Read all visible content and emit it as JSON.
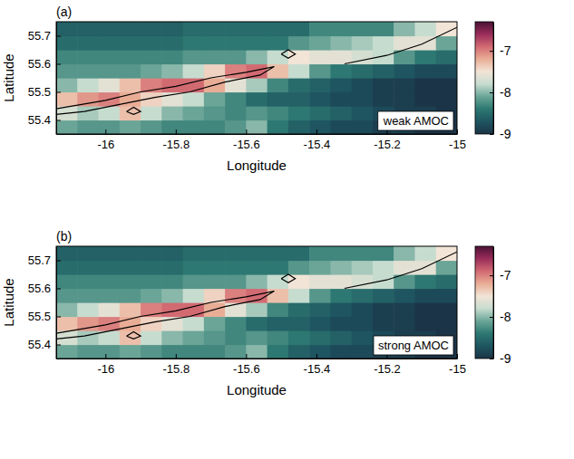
{
  "chart_data": [
    {
      "type": "heatmap",
      "panel_label": "(a)",
      "annotation": "weak AMOC",
      "x_label": "Longitude",
      "y_label": "Latitude",
      "xlim": [
        -16.14,
        -15.0
      ],
      "xticks": [
        -16,
        -15.8,
        -15.6,
        -15.4,
        -15.2,
        -15
      ],
      "ylim": [
        55.35,
        55.75
      ],
      "yticks": [
        55.4,
        55.5,
        55.6,
        55.7
      ],
      "lon_edges": [
        -16.14,
        -16.08,
        -16.02,
        -15.96,
        -15.9,
        -15.84,
        -15.78,
        -15.72,
        -15.66,
        -15.6,
        -15.54,
        -15.48,
        -15.42,
        -15.36,
        -15.3,
        -15.24,
        -15.18,
        -15.12,
        -15.06,
        -15.0
      ],
      "lat_edges": [
        55.35,
        55.4,
        55.45,
        55.5,
        55.55,
        55.6,
        55.65,
        55.7,
        55.75
      ],
      "values": [
        [
          -8.1,
          -8.2,
          -8.2,
          -8.1,
          -8.2,
          -8.3,
          -8.3,
          -8.3,
          -8.2,
          -8.0,
          -8.4,
          -8.6,
          -8.7,
          -8.8,
          -8.8,
          -8.9,
          -8.9,
          -9.0,
          -9.0
        ],
        [
          -7.7,
          -7.9,
          -7.8,
          -7.3,
          -7.8,
          -8.0,
          -8.1,
          -8.2,
          -8.3,
          -8.2,
          -8.3,
          -8.4,
          -8.5,
          -8.6,
          -8.7,
          -8.8,
          -8.9,
          -8.9,
          -9.0
        ],
        [
          -7.3,
          -7.1,
          -7.0,
          -7.2,
          -7.4,
          -7.6,
          -7.8,
          -8.1,
          -8.3,
          -8.5,
          -8.6,
          -8.6,
          -8.7,
          -8.8,
          -8.8,
          -8.9,
          -8.9,
          -9.0,
          -9.0
        ],
        [
          -8.0,
          -7.8,
          -7.6,
          -7.3,
          -7.0,
          -6.9,
          -6.9,
          -7.2,
          -7.6,
          -7.9,
          -8.3,
          -8.5,
          -8.6,
          -8.7,
          -8.8,
          -8.9,
          -8.9,
          -9.0,
          -9.0
        ],
        [
          -8.2,
          -8.2,
          -8.2,
          -8.2,
          -8.1,
          -8.0,
          -7.8,
          -7.4,
          -7.0,
          -6.9,
          -7.3,
          -7.8,
          -8.2,
          -8.4,
          -8.5,
          -8.6,
          -8.7,
          -8.8,
          -8.8
        ],
        [
          -8.3,
          -8.3,
          -8.3,
          -8.3,
          -8.3,
          -8.3,
          -8.2,
          -8.2,
          -8.2,
          -8.0,
          -7.8,
          -7.5,
          -7.6,
          -7.6,
          -7.7,
          -7.8,
          -8.2,
          -8.4,
          -8.5
        ],
        [
          -8.5,
          -8.5,
          -8.5,
          -8.5,
          -8.5,
          -8.5,
          -8.4,
          -8.4,
          -8.4,
          -8.4,
          -8.4,
          -8.2,
          -8.1,
          -8.0,
          -7.9,
          -7.8,
          -7.6,
          -7.6,
          -8.1
        ],
        [
          -8.6,
          -8.6,
          -8.6,
          -8.6,
          -8.6,
          -8.6,
          -8.5,
          -8.5,
          -8.5,
          -8.5,
          -8.5,
          -8.5,
          -8.3,
          -8.3,
          -8.3,
          -8.3,
          -8.0,
          -7.8,
          -7.5
        ]
      ],
      "contours": [
        [
          [
            -16.14,
            55.44
          ],
          [
            -16.0,
            55.47
          ],
          [
            -15.9,
            55.5
          ],
          [
            -15.8,
            55.52
          ],
          [
            -15.7,
            55.55
          ],
          [
            -15.6,
            55.57
          ],
          [
            -15.52,
            55.59
          ],
          [
            -15.56,
            55.56
          ],
          [
            -15.66,
            55.535
          ],
          [
            -15.76,
            55.5
          ],
          [
            -15.86,
            55.48
          ],
          [
            -15.96,
            55.455
          ],
          [
            -16.06,
            55.43
          ],
          [
            -16.14,
            55.42
          ]
        ],
        [
          [
            -15.94,
            55.43
          ],
          [
            -15.92,
            55.445
          ],
          [
            -15.9,
            55.43
          ],
          [
            -15.92,
            55.42
          ],
          [
            -15.94,
            55.43
          ]
        ],
        [
          [
            -15.5,
            55.635
          ],
          [
            -15.48,
            55.65
          ],
          [
            -15.46,
            55.635
          ],
          [
            -15.48,
            55.62
          ],
          [
            -15.5,
            55.635
          ]
        ],
        [
          [
            -15.32,
            55.6
          ],
          [
            -15.2,
            55.63
          ],
          [
            -15.1,
            55.67
          ],
          [
            -15.0,
            55.73
          ]
        ]
      ],
      "colorbar": {
        "range": [
          -9,
          -6.3
        ],
        "ticks": [
          -9,
          -8,
          -7
        ],
        "colors": [
          "#1b3447",
          "#1e5560",
          "#2d7872",
          "#6aa597",
          "#c6dccf",
          "#f2e4d6",
          "#e9ad96",
          "#d26a72",
          "#9a2c5a",
          "#4a1236"
        ]
      }
    },
    {
      "type": "heatmap",
      "panel_label": "(b)",
      "annotation": "strong AMOC",
      "x_label": "Longitude",
      "y_label": "Latitude",
      "xlim": [
        -16.14,
        -15.0
      ],
      "xticks": [
        -16,
        -15.8,
        -15.6,
        -15.4,
        -15.2,
        -15
      ],
      "ylim": [
        55.35,
        55.75
      ],
      "yticks": [
        55.4,
        55.5,
        55.6,
        55.7
      ],
      "lon_edges": [
        -16.14,
        -16.08,
        -16.02,
        -15.96,
        -15.9,
        -15.84,
        -15.78,
        -15.72,
        -15.66,
        -15.6,
        -15.54,
        -15.48,
        -15.42,
        -15.36,
        -15.3,
        -15.24,
        -15.18,
        -15.12,
        -15.06,
        -15.0
      ],
      "lat_edges": [
        55.35,
        55.4,
        55.45,
        55.5,
        55.55,
        55.6,
        55.65,
        55.7,
        55.75
      ],
      "values": [
        [
          -8.1,
          -8.2,
          -8.2,
          -8.1,
          -8.2,
          -8.3,
          -8.3,
          -8.3,
          -8.2,
          -8.0,
          -8.4,
          -8.6,
          -8.7,
          -8.8,
          -8.8,
          -8.9,
          -8.9,
          -9.0,
          -9.0
        ],
        [
          -7.7,
          -7.9,
          -7.8,
          -7.3,
          -7.8,
          -8.0,
          -8.1,
          -8.2,
          -8.3,
          -8.2,
          -8.3,
          -8.4,
          -8.5,
          -8.6,
          -8.7,
          -8.8,
          -8.9,
          -8.9,
          -9.0
        ],
        [
          -7.3,
          -7.1,
          -7.0,
          -7.2,
          -7.4,
          -7.6,
          -7.8,
          -8.1,
          -8.3,
          -8.5,
          -8.6,
          -8.6,
          -8.7,
          -8.8,
          -8.8,
          -8.9,
          -8.9,
          -9.0,
          -9.0
        ],
        [
          -8.0,
          -7.8,
          -7.6,
          -7.3,
          -7.0,
          -6.9,
          -6.9,
          -7.2,
          -7.6,
          -7.9,
          -8.3,
          -8.5,
          -8.6,
          -8.7,
          -8.8,
          -8.9,
          -8.9,
          -9.0,
          -9.0
        ],
        [
          -8.2,
          -8.2,
          -8.2,
          -8.2,
          -8.1,
          -8.0,
          -7.8,
          -7.4,
          -7.0,
          -6.9,
          -7.3,
          -7.8,
          -8.2,
          -8.4,
          -8.5,
          -8.6,
          -8.7,
          -8.8,
          -8.8
        ],
        [
          -8.3,
          -8.3,
          -8.3,
          -8.3,
          -8.3,
          -8.3,
          -8.2,
          -8.2,
          -8.2,
          -8.0,
          -7.8,
          -7.5,
          -7.6,
          -7.6,
          -7.7,
          -7.8,
          -8.2,
          -8.4,
          -8.5
        ],
        [
          -8.5,
          -8.5,
          -8.5,
          -8.5,
          -8.5,
          -8.5,
          -8.4,
          -8.4,
          -8.4,
          -8.4,
          -8.4,
          -8.2,
          -8.1,
          -8.0,
          -7.9,
          -7.8,
          -7.6,
          -7.6,
          -8.1
        ],
        [
          -8.6,
          -8.6,
          -8.6,
          -8.6,
          -8.6,
          -8.6,
          -8.5,
          -8.5,
          -8.5,
          -8.5,
          -8.5,
          -8.5,
          -8.3,
          -8.3,
          -8.3,
          -8.3,
          -8.0,
          -7.8,
          -7.5
        ]
      ],
      "contours": [
        [
          [
            -16.14,
            55.44
          ],
          [
            -16.0,
            55.47
          ],
          [
            -15.9,
            55.5
          ],
          [
            -15.8,
            55.52
          ],
          [
            -15.7,
            55.55
          ],
          [
            -15.6,
            55.57
          ],
          [
            -15.52,
            55.59
          ],
          [
            -15.56,
            55.56
          ],
          [
            -15.66,
            55.535
          ],
          [
            -15.76,
            55.5
          ],
          [
            -15.86,
            55.48
          ],
          [
            -15.96,
            55.455
          ],
          [
            -16.06,
            55.43
          ],
          [
            -16.14,
            55.42
          ]
        ],
        [
          [
            -15.94,
            55.43
          ],
          [
            -15.92,
            55.445
          ],
          [
            -15.9,
            55.43
          ],
          [
            -15.92,
            55.42
          ],
          [
            -15.94,
            55.43
          ]
        ],
        [
          [
            -15.5,
            55.635
          ],
          [
            -15.48,
            55.65
          ],
          [
            -15.46,
            55.635
          ],
          [
            -15.48,
            55.62
          ],
          [
            -15.5,
            55.635
          ]
        ],
        [
          [
            -15.32,
            55.6
          ],
          [
            -15.2,
            55.63
          ],
          [
            -15.1,
            55.67
          ],
          [
            -15.0,
            55.73
          ]
        ]
      ],
      "colorbar": {
        "range": [
          -9,
          -6.3
        ],
        "ticks": [
          -9,
          -8,
          -7
        ],
        "colors": [
          "#1b3447",
          "#1e5560",
          "#2d7872",
          "#6aa597",
          "#c6dccf",
          "#f2e4d6",
          "#e9ad96",
          "#d26a72",
          "#9a2c5a",
          "#4a1236"
        ]
      }
    }
  ]
}
